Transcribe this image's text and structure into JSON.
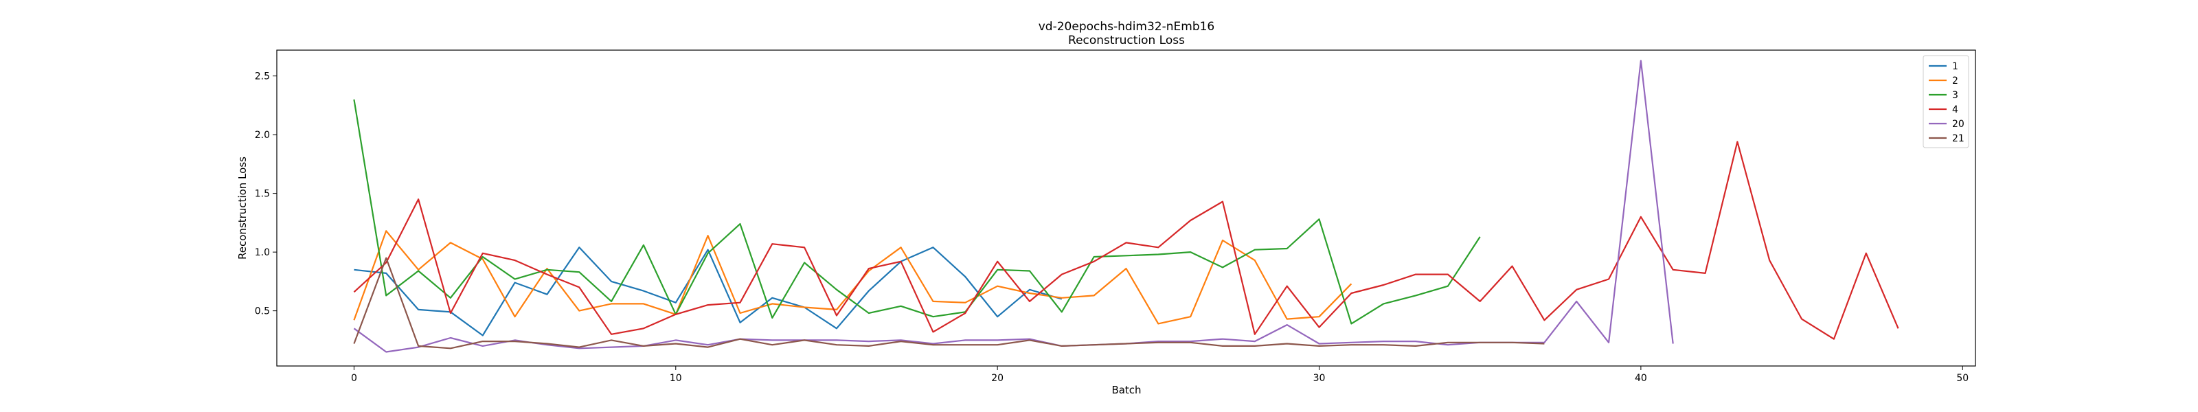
{
  "chart_data": {
    "type": "line",
    "title": "vd-20epochs-hdim32-nEmb16",
    "subtitle": "Reconstruction Loss",
    "xlabel": "Batch",
    "ylabel": "Reconstruction Loss",
    "xlim": [
      -2.4,
      50.4
    ],
    "ylim": [
      0.03,
      2.72
    ],
    "xticks": [
      0,
      10,
      20,
      30,
      40,
      50
    ],
    "yticks": [
      0.5,
      1.0,
      1.5,
      2.0,
      2.5
    ],
    "ytick_labels": [
      "0.5",
      "1.0",
      "1.5",
      "2.0",
      "2.5"
    ],
    "grid": false,
    "legend_position": "top-right",
    "series": [
      {
        "name": "1",
        "color": "#1f77b4",
        "x": [
          0,
          1,
          2,
          3,
          4,
          5,
          6,
          7,
          8,
          9,
          10,
          11,
          12,
          13,
          14,
          15,
          16,
          17,
          18,
          19,
          20,
          21,
          22
        ],
        "values": [
          0.85,
          0.82,
          0.51,
          0.49,
          0.29,
          0.74,
          0.64,
          1.04,
          0.75,
          0.67,
          0.57,
          1.02,
          0.4,
          0.61,
          0.53,
          0.35,
          0.67,
          0.92,
          1.04,
          0.79,
          0.45,
          0.68,
          0.6
        ]
      },
      {
        "name": "2",
        "color": "#ff7f0e",
        "x": [
          0,
          1,
          2,
          3,
          4,
          5,
          6,
          7,
          8,
          9,
          10,
          11,
          12,
          13,
          14,
          15,
          16,
          17,
          18,
          19,
          20,
          21,
          22,
          23,
          24,
          25,
          26,
          27,
          28,
          29,
          30,
          31
        ],
        "values": [
          0.42,
          1.18,
          0.85,
          1.08,
          0.94,
          0.45,
          0.86,
          0.5,
          0.56,
          0.56,
          0.47,
          1.14,
          0.48,
          0.56,
          0.53,
          0.51,
          0.84,
          1.04,
          0.58,
          0.57,
          0.71,
          0.65,
          0.61,
          0.63,
          0.86,
          0.39,
          0.45,
          1.1,
          0.93,
          0.43,
          0.45,
          0.73
        ]
      },
      {
        "name": "3",
        "color": "#2ca02c",
        "x": [
          0,
          1,
          2,
          3,
          4,
          5,
          6,
          7,
          8,
          9,
          10,
          11,
          12,
          13,
          14,
          15,
          16,
          17,
          18,
          19,
          20,
          21,
          22,
          23,
          24,
          25,
          26,
          27,
          28,
          29,
          30,
          31,
          32,
          33,
          34,
          35
        ],
        "values": [
          2.3,
          0.63,
          0.84,
          0.61,
          0.96,
          0.77,
          0.85,
          0.83,
          0.58,
          1.06,
          0.47,
          0.99,
          1.24,
          0.44,
          0.91,
          0.68,
          0.48,
          0.54,
          0.45,
          0.49,
          0.85,
          0.84,
          0.49,
          0.96,
          0.97,
          0.98,
          1.0,
          0.87,
          1.02,
          1.03,
          1.28,
          0.39,
          0.56,
          0.63,
          0.71,
          1.13
        ]
      },
      {
        "name": "4",
        "color": "#d62728",
        "x": [
          0,
          1,
          2,
          3,
          4,
          5,
          6,
          7,
          8,
          9,
          10,
          11,
          12,
          13,
          14,
          15,
          16,
          17,
          18,
          19,
          20,
          21,
          22,
          23,
          24,
          25,
          26,
          27,
          28,
          29,
          30,
          31,
          32,
          33,
          34,
          35,
          36,
          37,
          38,
          39,
          40,
          41,
          42,
          43,
          44,
          45,
          46,
          47,
          48
        ],
        "values": [
          0.66,
          0.91,
          1.45,
          0.48,
          0.99,
          0.93,
          0.81,
          0.7,
          0.3,
          0.35,
          0.47,
          0.55,
          0.57,
          1.07,
          1.04,
          0.46,
          0.86,
          0.92,
          0.32,
          0.48,
          0.92,
          0.58,
          0.81,
          0.92,
          1.08,
          1.04,
          1.27,
          1.43,
          0.3,
          0.71,
          0.36,
          0.65,
          0.72,
          0.81,
          0.81,
          0.58,
          0.88,
          0.42,
          0.68,
          0.77,
          1.3,
          0.85,
          0.82,
          1.94,
          0.93,
          0.43,
          0.26,
          0.99,
          0.35
        ]
      },
      {
        "name": "20",
        "color": "#9467bd",
        "x": [
          0,
          1,
          2,
          3,
          4,
          5,
          6,
          7,
          8,
          9,
          10,
          11,
          12,
          13,
          14,
          15,
          16,
          17,
          18,
          19,
          20,
          21,
          22,
          23,
          24,
          25,
          26,
          27,
          28,
          29,
          30,
          31,
          32,
          33,
          34,
          35,
          36,
          37,
          38,
          39,
          40,
          41
        ],
        "values": [
          0.35,
          0.15,
          0.19,
          0.27,
          0.2,
          0.25,
          0.21,
          0.18,
          0.19,
          0.2,
          0.25,
          0.21,
          0.26,
          0.25,
          0.25,
          0.25,
          0.24,
          0.25,
          0.22,
          0.25,
          0.25,
          0.26,
          0.2,
          0.21,
          0.22,
          0.24,
          0.24,
          0.26,
          0.24,
          0.38,
          0.22,
          0.23,
          0.24,
          0.24,
          0.21,
          0.23,
          0.23,
          0.23,
          0.58,
          0.23,
          2.63,
          0.22
        ]
      },
      {
        "name": "21",
        "color": "#8c564b",
        "x": [
          0,
          1,
          2,
          3,
          4,
          5,
          6,
          7,
          8,
          9,
          10,
          11,
          12,
          13,
          14,
          15,
          16,
          17,
          18,
          19,
          20,
          21,
          22,
          23,
          24,
          25,
          26,
          27,
          28,
          29,
          30,
          31,
          32,
          33,
          34,
          35,
          36,
          37
        ],
        "values": [
          0.22,
          0.95,
          0.2,
          0.18,
          0.24,
          0.24,
          0.22,
          0.19,
          0.25,
          0.2,
          0.22,
          0.19,
          0.26,
          0.21,
          0.25,
          0.21,
          0.2,
          0.24,
          0.21,
          0.21,
          0.21,
          0.25,
          0.2,
          0.21,
          0.22,
          0.23,
          0.23,
          0.2,
          0.2,
          0.22,
          0.2,
          0.21,
          0.21,
          0.2,
          0.23,
          0.23,
          0.23,
          0.22
        ]
      }
    ]
  }
}
